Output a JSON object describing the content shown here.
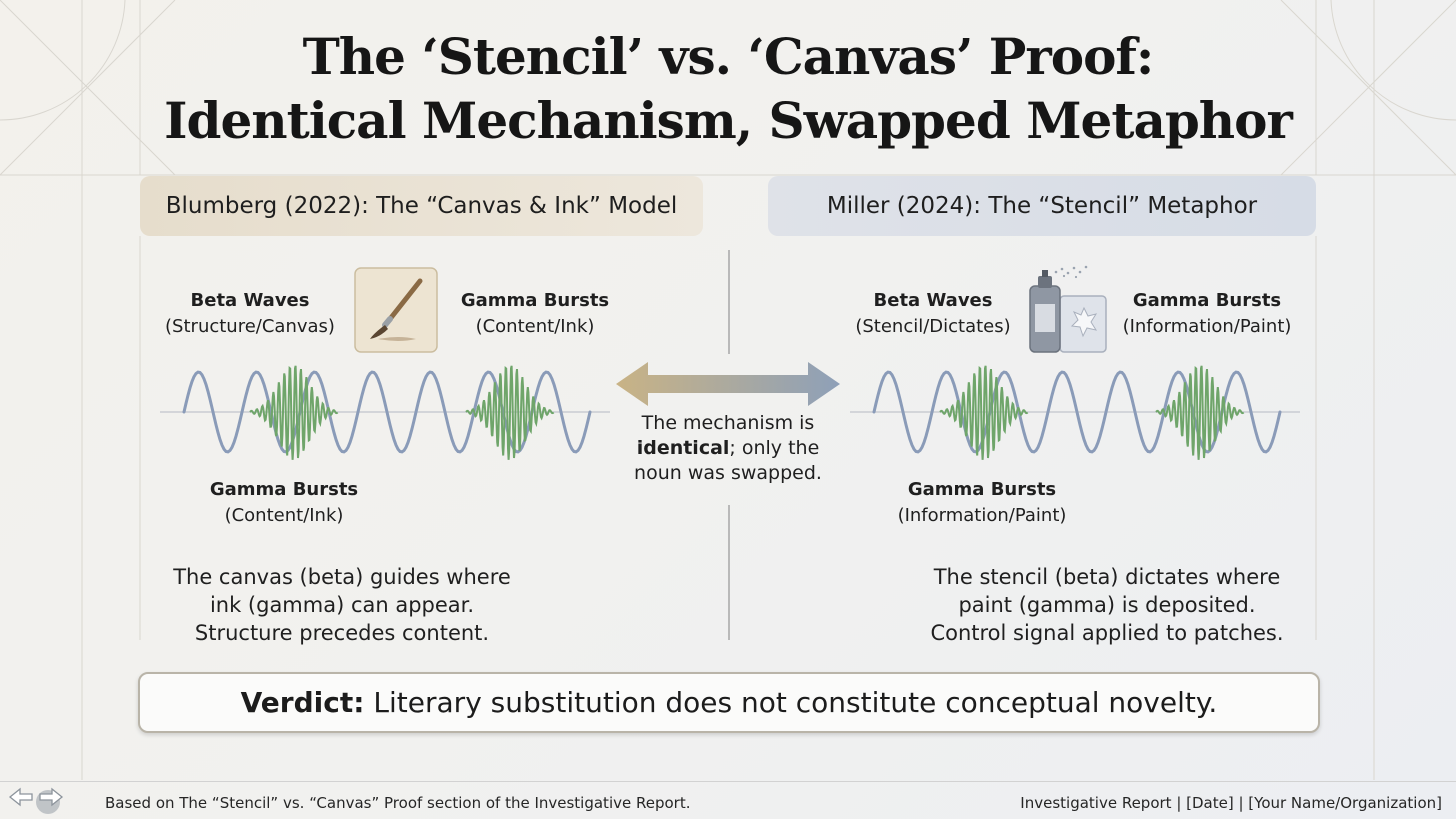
{
  "title": {
    "line1": "The ‘Stencil’ vs. ‘Canvas’ Proof:",
    "line2": "Identical Mechanism, Swapped Metaphor"
  },
  "left": {
    "heading": "Blumberg (2022): The “Canvas & Ink” Model",
    "beta_title": "Beta Waves",
    "beta_sub": "(Structure/Canvas)",
    "gamma_title": "Gamma Bursts",
    "gamma_sub": "(Content/Ink)",
    "gamma_below_title": "Gamma Bursts",
    "gamma_below_sub": "(Content/Ink)",
    "desc_1": "The canvas (beta) guides where",
    "desc_2": "ink (gamma) can appear.",
    "desc_3": "Structure precedes content.",
    "icon": "paintbrush-icon"
  },
  "right": {
    "heading": "Miller (2024): The “Stencil” Metaphor",
    "beta_title": "Beta Waves",
    "beta_sub": "(Stencil/Dictates)",
    "gamma_title": "Gamma Bursts",
    "gamma_sub": "(Information/Paint)",
    "gamma_below_title": "Gamma Bursts",
    "gamma_below_sub": "(Information/Paint)",
    "desc_1": "The stencil (beta) dictates where",
    "desc_2": "paint (gamma) is deposited.",
    "desc_3": "Control signal applied to patches.",
    "icon": "spray-can-stencil-icon"
  },
  "center": {
    "note_1": "The mechanism is",
    "note_bold": "identical",
    "note_2": "; only the",
    "note_3": "noun was swapped.",
    "icon": "double-arrow-icon"
  },
  "verdict": {
    "label": "Verdict:",
    "text": "Literary substitution does not constitute conceptual novelty."
  },
  "footer": {
    "left": "Based on The “Stencil” vs. “Canvas” Proof section of the Investigative Report.",
    "right": "Investigative Report | [Date] | [Your Name/Organization]"
  },
  "colors": {
    "beta_wave": "#8a9bb8",
    "gamma_wave": "#6fa56a",
    "left_panel": "#e6ddcc",
    "right_panel": "#dbe0e8",
    "arrow_left": "#c9b385",
    "arrow_right": "#8ea0b8"
  }
}
